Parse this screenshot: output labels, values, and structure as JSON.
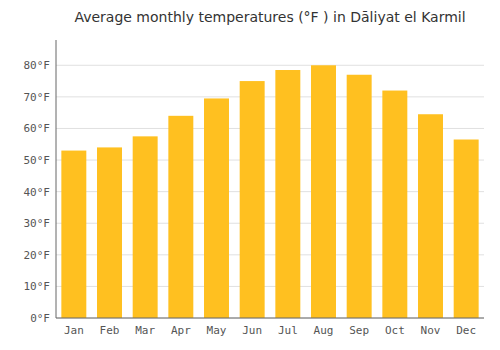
{
  "chart_data": {
    "type": "bar",
    "title": "Average monthly temperatures (°F ) in Dāliyat el Karmil",
    "categories": [
      "Jan",
      "Feb",
      "Mar",
      "Apr",
      "May",
      "Jun",
      "Jul",
      "Aug",
      "Sep",
      "Oct",
      "Nov",
      "Dec"
    ],
    "values": [
      53,
      54,
      57.5,
      64,
      69.5,
      75,
      78.5,
      80,
      77,
      72,
      64.5,
      56.5
    ],
    "color": "#FFC020",
    "ylim": [
      0,
      88
    ],
    "yticks": [
      {
        "value": 0,
        "label": "0°F"
      },
      {
        "value": 10,
        "label": "10°F"
      },
      {
        "value": 20,
        "label": "20°F"
      },
      {
        "value": 30,
        "label": "30°F"
      },
      {
        "value": 40,
        "label": "40°F"
      },
      {
        "value": 50,
        "label": "50°F"
      },
      {
        "value": 60,
        "label": "60°F"
      },
      {
        "value": 70,
        "label": "70°F"
      },
      {
        "value": 80,
        "label": "80°F"
      }
    ],
    "grid": true
  }
}
